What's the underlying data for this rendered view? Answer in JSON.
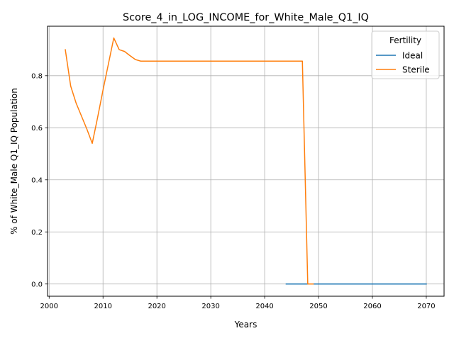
{
  "chart_data": {
    "type": "line",
    "title": "Score_4_in_LOG_INCOME_for_White_Male_Q1_IQ",
    "xlabel": "Years",
    "ylabel": "% of White_Male Q1_IQ Population",
    "xlim": [
      1999.7,
      2073.3
    ],
    "ylim": [
      -0.047,
      0.99
    ],
    "xticks": [
      2000,
      2010,
      2020,
      2030,
      2040,
      2050,
      2060,
      2070
    ],
    "yticks": [
      0.0,
      0.2,
      0.4,
      0.6,
      0.8
    ],
    "ytick_labels": [
      "0.0",
      "0.2",
      "0.4",
      "0.6",
      "0.8"
    ],
    "grid": true,
    "legend": {
      "title": "Fertility",
      "placement": "top-right"
    },
    "series": [
      {
        "name": "Ideal",
        "color": "#1f77b4",
        "x": [
          2044,
          2050,
          2055,
          2060,
          2065,
          2070
        ],
        "y": [
          0.0,
          0.0,
          0.0,
          0.0,
          0.0,
          0.0
        ]
      },
      {
        "name": "Sterile",
        "color": "#ff7f0e",
        "x": [
          2003,
          2004,
          2005,
          2006,
          2007,
          2008,
          2009,
          2010,
          2011,
          2012,
          2013,
          2014,
          2015,
          2016,
          2017,
          2020,
          2030,
          2040,
          2046,
          2047,
          2048,
          2049
        ],
        "y": [
          0.9,
          0.76,
          0.695,
          0.645,
          0.595,
          0.54,
          0.64,
          0.745,
          0.845,
          0.945,
          0.9,
          0.893,
          0.877,
          0.862,
          0.856,
          0.856,
          0.856,
          0.856,
          0.856,
          0.856,
          0.0,
          0.0
        ]
      }
    ]
  }
}
